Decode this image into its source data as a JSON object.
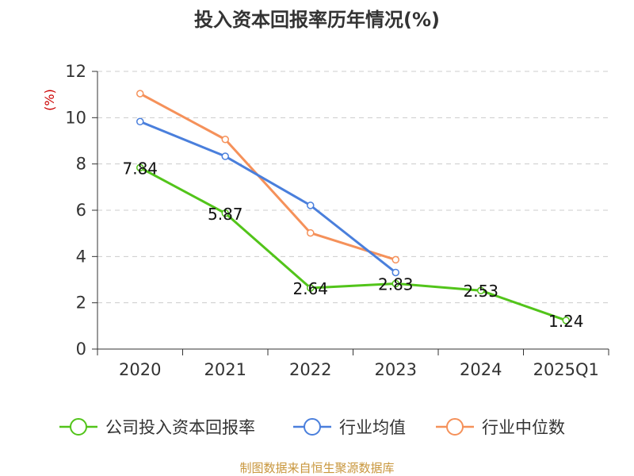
{
  "chart_data": {
    "type": "line",
    "title": "投入资本回报率历年情况(%)",
    "ylabel": "(%)",
    "xlabel": "",
    "categories": [
      "2020",
      "2021",
      "2022",
      "2023",
      "2024",
      "2025Q1"
    ],
    "ylim": [
      0,
      12
    ],
    "yticks": [
      0,
      2,
      4,
      6,
      8,
      10,
      12
    ],
    "grid": true,
    "legend_position": "bottom",
    "series": [
      {
        "name": "公司投入资本回报率",
        "color": "#52c41a",
        "values": [
          7.84,
          5.87,
          2.64,
          2.83,
          2.53,
          1.24
        ],
        "labels": [
          "7.84",
          "5.87",
          "2.64",
          "2.83",
          "2.53",
          "1.24"
        ],
        "show_labels": true
      },
      {
        "name": "行业均值",
        "color": "#4a7fdc",
        "values": [
          9.83,
          8.33,
          6.21,
          3.31,
          null,
          null
        ],
        "show_labels": false
      },
      {
        "name": "行业中位数",
        "color": "#f5915a",
        "values": [
          11.04,
          9.06,
          5.02,
          3.86,
          null,
          null
        ],
        "show_labels": false
      }
    ],
    "source": "制图数据来自恒生聚源数据库"
  }
}
